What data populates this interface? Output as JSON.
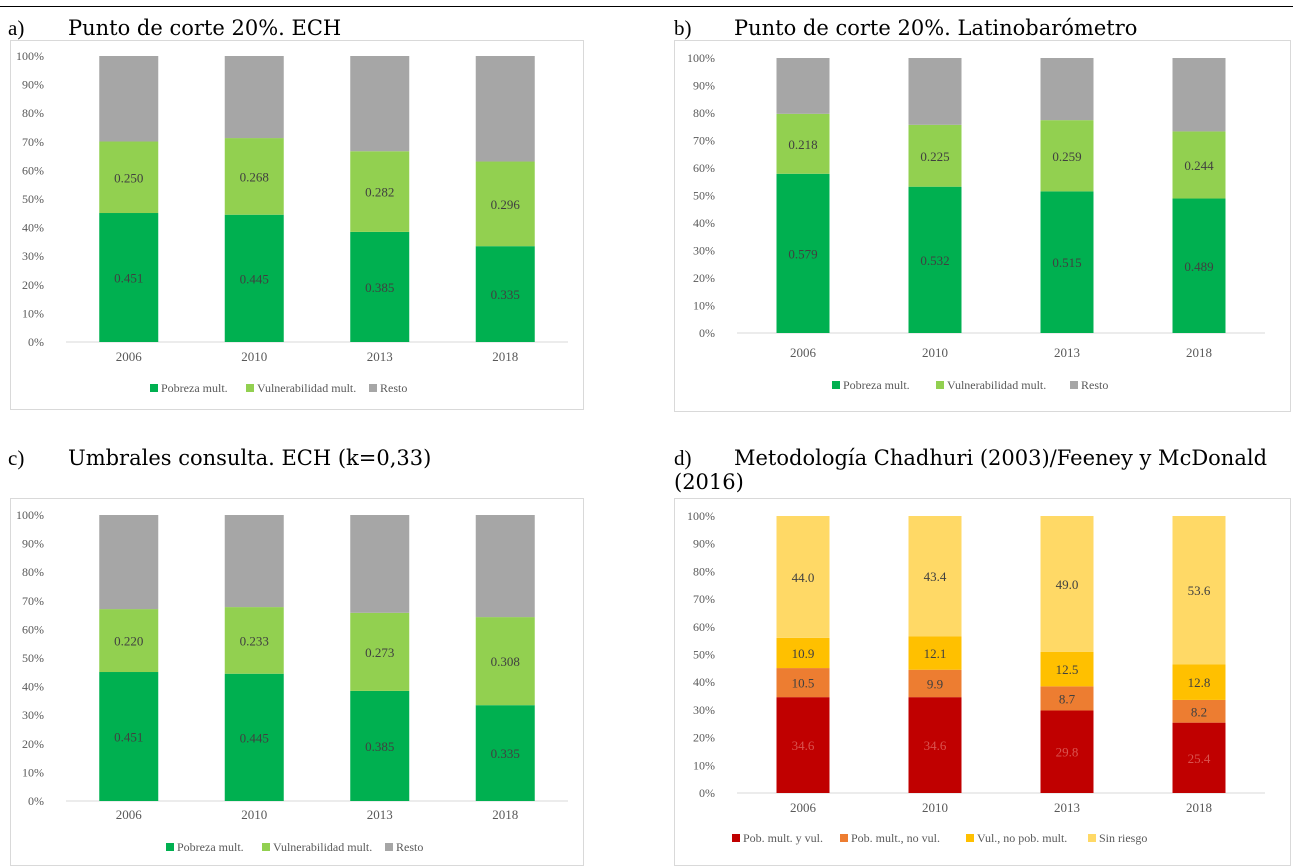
{
  "panels": [
    {
      "letter": "a)",
      "title": "Punto de corte 20%. ECH"
    },
    {
      "letter": "b)",
      "title": "Punto de corte 20%. Latinobarómetro"
    },
    {
      "letter": "c)",
      "title": "Umbrales consulta. ECH (k=0,33)"
    },
    {
      "letter": "d)",
      "title": "Metodología Chadhuri (2003)/Feeney y McDonald (2016)"
    }
  ],
  "chart_data": [
    {
      "type": "bar",
      "stacked": true,
      "title": "Punto de corte 20%. ECH",
      "categories": [
        "2006",
        "2010",
        "2013",
        "2018"
      ],
      "yticks": [
        "0%",
        "10%",
        "20%",
        "30%",
        "40%",
        "50%",
        "60%",
        "70%",
        "80%",
        "90%",
        "100%"
      ],
      "ylim": [
        0,
        1
      ],
      "legend_position": "bottom",
      "series": [
        {
          "name": "Pobreza mult.",
          "values": [
            0.451,
            0.445,
            0.385,
            0.335
          ],
          "labels": [
            "0.451",
            "0.445",
            "0.385",
            "0.335"
          ],
          "color": "#00b050",
          "label_color": "#404040"
        },
        {
          "name": "Vulnerabilidad mult.",
          "values": [
            0.25,
            0.268,
            0.282,
            0.296
          ],
          "labels": [
            "0.250",
            "0.268",
            "0.282",
            "0.296"
          ],
          "color": "#92d050",
          "label_color": "#404040"
        },
        {
          "name": "Resto",
          "values": [
            0.299,
            0.287,
            0.333,
            0.369
          ],
          "labels": null,
          "color": "#a6a6a6",
          "label_color": "#404040"
        }
      ]
    },
    {
      "type": "bar",
      "stacked": true,
      "title": "Punto de corte 20%. Latinobarómetro",
      "categories": [
        "2006",
        "2010",
        "2013",
        "2018"
      ],
      "yticks": [
        "0%",
        "10%",
        "20%",
        "30%",
        "40%",
        "50%",
        "60%",
        "70%",
        "80%",
        "90%",
        "100%"
      ],
      "ylim": [
        0,
        1
      ],
      "legend_position": "bottom",
      "series": [
        {
          "name": "Pobreza mult.",
          "values": [
            0.579,
            0.532,
            0.515,
            0.489
          ],
          "labels": [
            "0.579",
            "0.532",
            "0.515",
            "0.489"
          ],
          "color": "#00b050",
          "label_color": "#404040"
        },
        {
          "name": "Vulnerabilidad mult.",
          "values": [
            0.218,
            0.225,
            0.259,
            0.244
          ],
          "labels": [
            "0.218",
            "0.225",
            "0.259",
            "0.244"
          ],
          "color": "#92d050",
          "label_color": "#404040"
        },
        {
          "name": "Resto",
          "values": [
            0.203,
            0.243,
            0.226,
            0.267
          ],
          "labels": null,
          "color": "#a6a6a6",
          "label_color": "#404040"
        }
      ]
    },
    {
      "type": "bar",
      "stacked": true,
      "title": "Umbrales consulta. ECH (k=0,33)",
      "categories": [
        "2006",
        "2010",
        "2013",
        "2018"
      ],
      "yticks": [
        "0%",
        "10%",
        "20%",
        "30%",
        "40%",
        "50%",
        "60%",
        "70%",
        "80%",
        "90%",
        "100%"
      ],
      "ylim": [
        0,
        1
      ],
      "legend_position": "bottom",
      "series": [
        {
          "name": "Pobreza mult.",
          "values": [
            0.451,
            0.445,
            0.385,
            0.335
          ],
          "labels": [
            "0.451",
            "0.445",
            "0.385",
            "0.335"
          ],
          "color": "#00b050",
          "label_color": "#404040"
        },
        {
          "name": "Vulnerabilidad mult.",
          "values": [
            0.22,
            0.233,
            0.273,
            0.308
          ],
          "labels": [
            "0.220",
            "0.233",
            "0.273",
            "0.308"
          ],
          "color": "#92d050",
          "label_color": "#404040"
        },
        {
          "name": "Resto",
          "values": [
            0.329,
            0.322,
            0.342,
            0.357
          ],
          "labels": null,
          "color": "#a6a6a6",
          "label_color": "#404040"
        }
      ]
    },
    {
      "type": "bar",
      "stacked": true,
      "title": "Metodología Chadhuri (2003)/Feeney y McDonald (2016)",
      "categories": [
        "2006",
        "2010",
        "2013",
        "2018"
      ],
      "yticks": [
        "0%",
        "10%",
        "20%",
        "30%",
        "40%",
        "50%",
        "60%",
        "70%",
        "80%",
        "90%",
        "100%"
      ],
      "ylim": [
        0,
        100
      ],
      "legend_position": "bottom",
      "series": [
        {
          "name": "Pob. mult. y vul.",
          "values": [
            34.6,
            34.6,
            29.8,
            25.4
          ],
          "labels": [
            "34.6",
            "34.6",
            "29.8",
            "25.4"
          ],
          "color": "#c00000",
          "label_color": "#d9534f"
        },
        {
          "name": "Pob. mult., no vul.",
          "values": [
            10.5,
            9.9,
            8.7,
            8.2
          ],
          "labels": [
            "10.5",
            "9.9",
            "8.7",
            "8.2"
          ],
          "color": "#ed7d31",
          "label_color": "#404040"
        },
        {
          "name": "Vul., no pob. mult.",
          "values": [
            10.9,
            12.1,
            12.5,
            12.8
          ],
          "labels": [
            "10.9",
            "12.1",
            "12.5",
            "12.8"
          ],
          "color": "#ffc000",
          "label_color": "#404040"
        },
        {
          "name": "Sin riesgo",
          "values": [
            44.0,
            43.4,
            49.0,
            53.6
          ],
          "labels": [
            "44.0",
            "43.4",
            "49.0",
            "53.6"
          ],
          "color": "#ffd966",
          "label_color": "#404040"
        }
      ]
    }
  ]
}
